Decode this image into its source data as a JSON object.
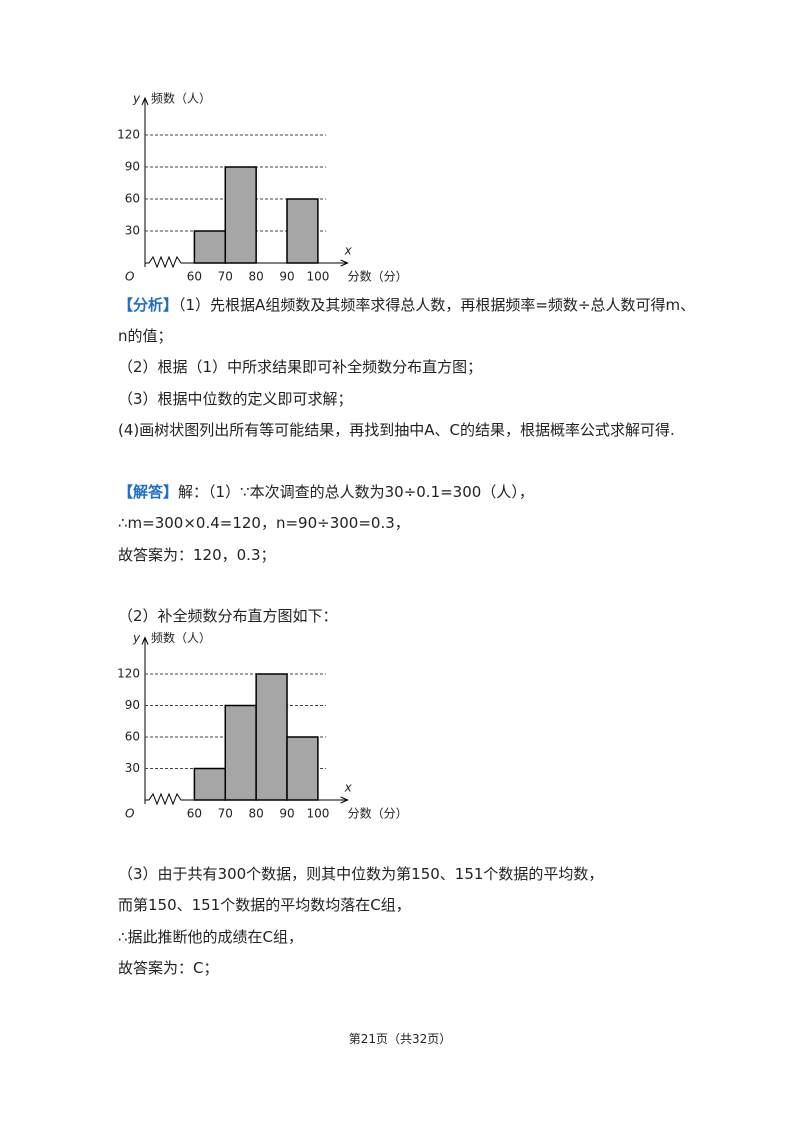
{
  "chart_data": [
    {
      "type": "histogram",
      "y_letter": "y",
      "y_label": "频数（人）",
      "x_letter": "x",
      "x_label": "分数（分）",
      "origin": "O",
      "bins": [
        60,
        70,
        80,
        90,
        100
      ],
      "values": [
        30,
        90,
        null,
        60
      ],
      "color": "#a6a6a6",
      "xlim": [
        44,
        108
      ],
      "xticks": [
        60,
        70,
        80,
        90,
        100
      ],
      "ylim": [
        0,
        150
      ],
      "yticks": [
        30,
        60,
        90,
        120
      ],
      "grid": true
    },
    {
      "type": "histogram",
      "y_letter": "y",
      "y_label": "频数（人）",
      "x_letter": "x",
      "x_label": "分数（分）",
      "origin": "O",
      "bins": [
        60,
        70,
        80,
        90,
        100
      ],
      "values": [
        30,
        90,
        120,
        60
      ],
      "color": "#a6a6a6",
      "xlim": [
        44,
        108
      ],
      "xticks": [
        60,
        70,
        80,
        90,
        100
      ],
      "ylim": [
        0,
        150
      ],
      "yticks": [
        30,
        60,
        90,
        120
      ],
      "grid": true
    }
  ],
  "document": {
    "analysis": {
      "label": "【分析】",
      "lines": [
        "（1）先根据A组频数及其频率求得总人数，再根据频率=频数÷总人数可得m、n的值；",
        "（2）根据（1）中所求结果即可补全频数分布直方图；",
        "（3）根据中位数的定义即可求解；",
        "(4)画树状图列出所有等可能结果，再找到抽中A、C的结果，根据概率公式求解可得."
      ]
    },
    "solution": {
      "label": "【解答】",
      "lines": [
        "解：（1）∵本次调查的总人数为30÷0.1=300（人），",
        "∴m=300×0.4=120，n=90÷300=0.3，",
        "故答案为：120，0.3；",
        "（2）补全频数分布直方图如下：",
        "（3）由于共有300个数据，则其中位数为第150、151个数据的平均数，",
        "而第150、151个数据的平均数均落在C组，",
        "∴据此推断他的成绩在C组，",
        "故答案为：C；"
      ]
    },
    "footer": "第21页（共32页）"
  }
}
